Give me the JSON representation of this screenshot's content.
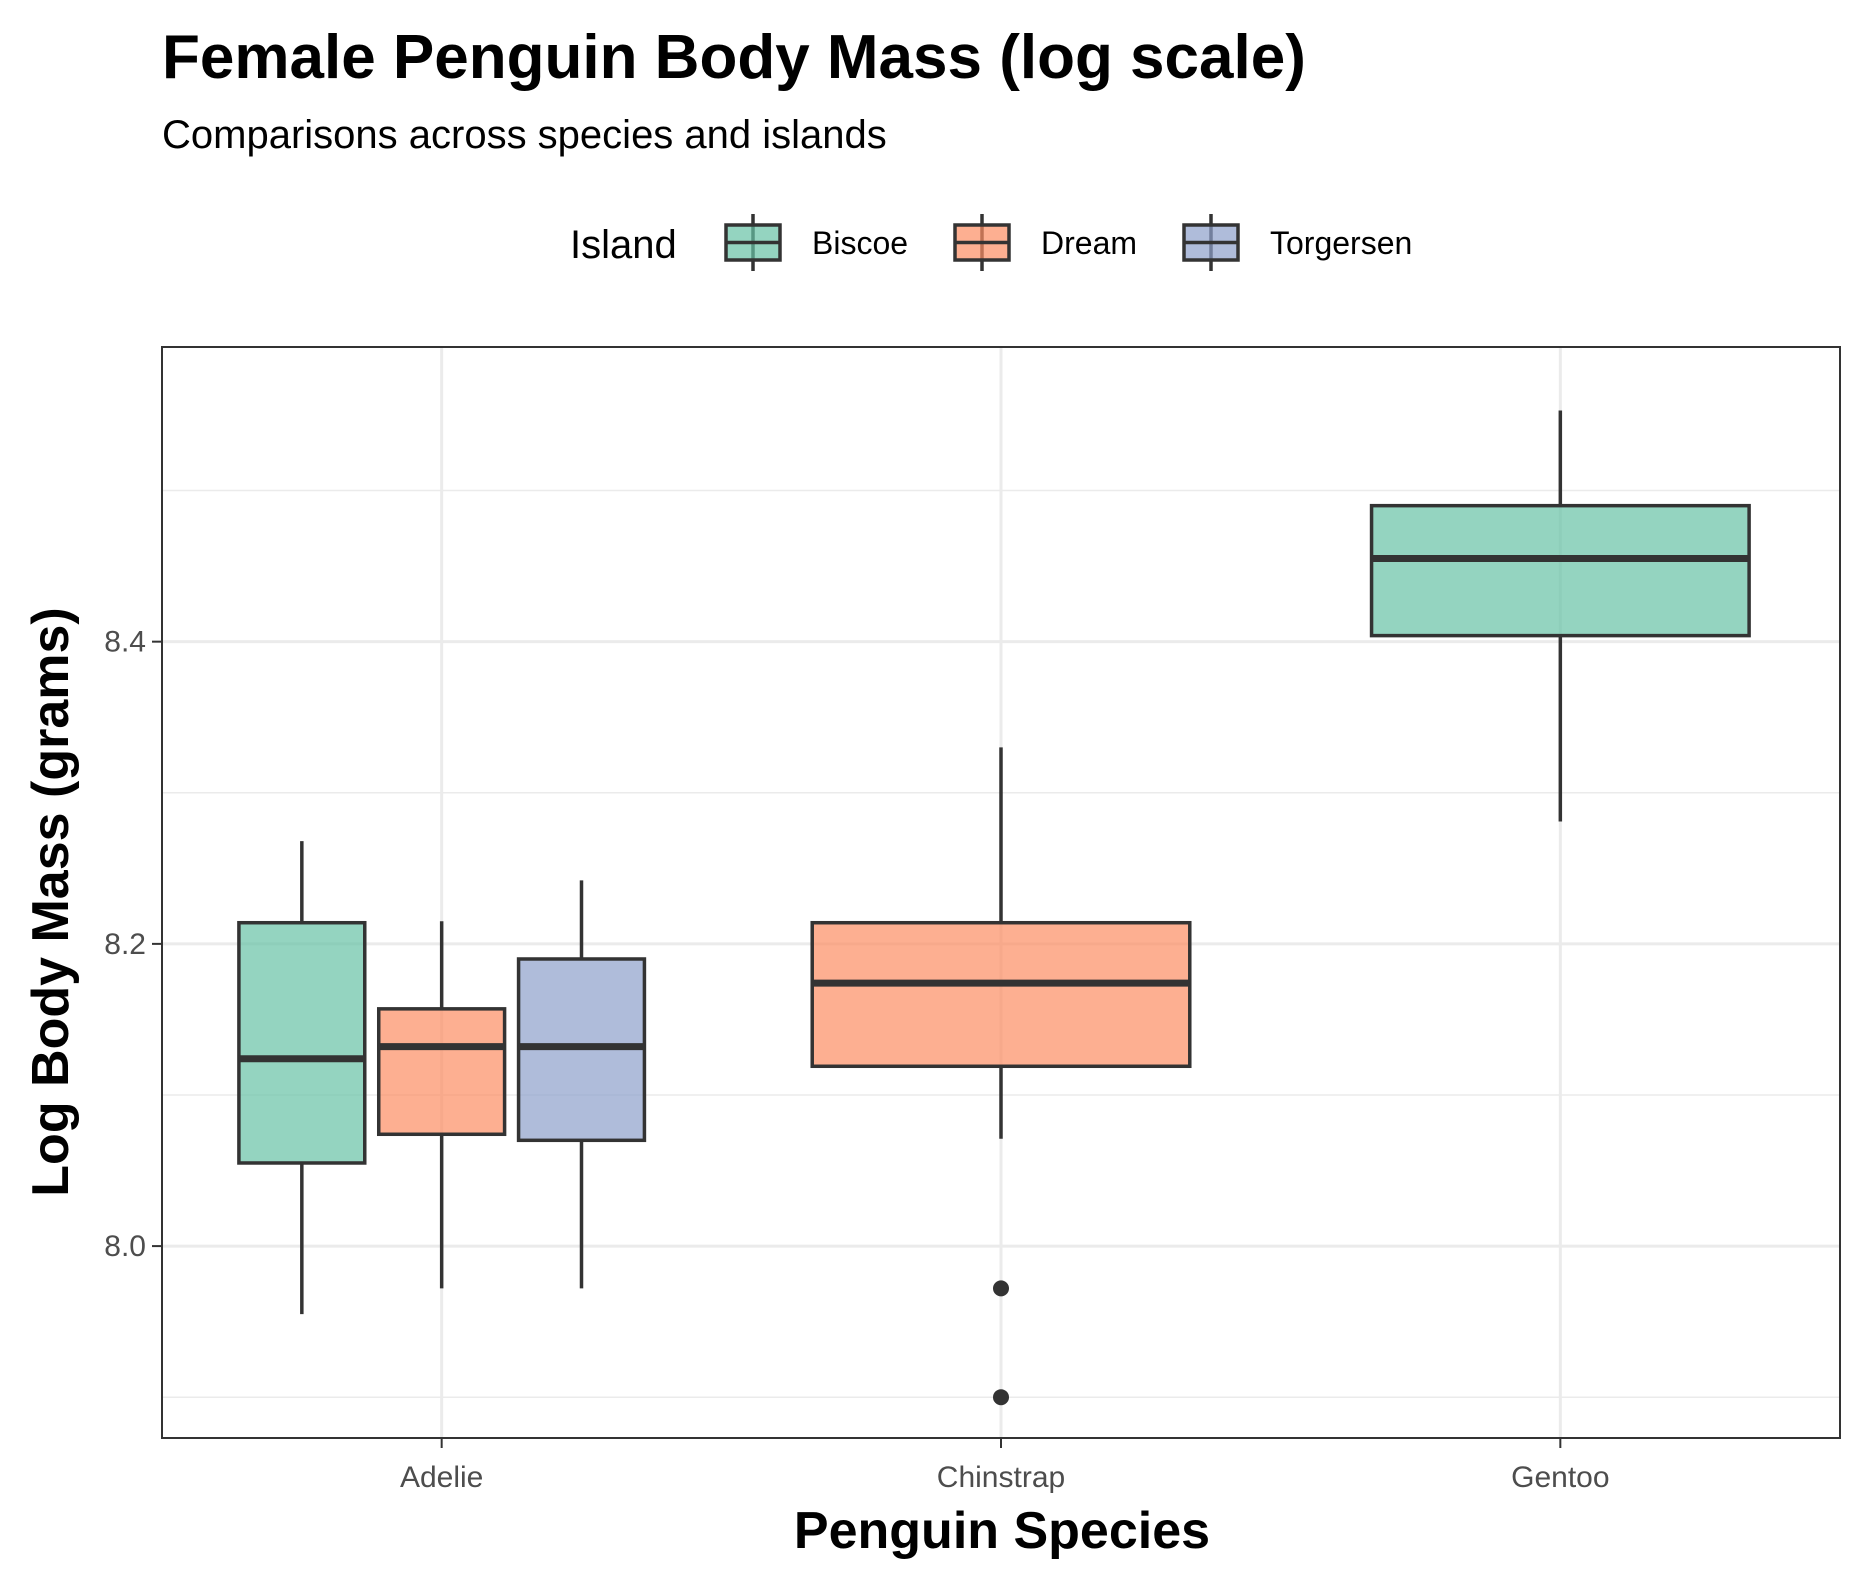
{
  "chart_data": {
    "type": "box",
    "title": "Female Penguin Body Mass (log scale)",
    "subtitle": "Comparisons across species and islands",
    "xlabel": "Penguin Species",
    "ylabel": "Log Body Mass (grams)",
    "categories": [
      "Adelie",
      "Chinstrap",
      "Gentoo"
    ],
    "ylim": [
      7.873,
      8.595
    ],
    "yticks": [
      8.0,
      8.2,
      8.4
    ],
    "ytick_labels": [
      "8.0",
      "8.2",
      "8.4"
    ],
    "grid": true,
    "legend": {
      "title": "Island",
      "position": "top",
      "entries": [
        "Biscoe",
        "Dream",
        "Torgersen"
      ]
    },
    "colors": {
      "Biscoe": "#66c2a5",
      "Dream": "#fc8d62",
      "Torgersen": "#8da0cb"
    },
    "series": [
      {
        "name": "Biscoe",
        "boxes": [
          {
            "category": "Adelie",
            "lower_whisker": 7.955,
            "q1": 8.055,
            "median": 8.124,
            "q3": 8.214,
            "upper_whisker": 8.268,
            "outliers": []
          },
          {
            "category": "Gentoo",
            "lower_whisker": 8.281,
            "q1": 8.404,
            "median": 8.455,
            "q3": 8.49,
            "upper_whisker": 8.553,
            "outliers": []
          }
        ]
      },
      {
        "name": "Dream",
        "boxes": [
          {
            "category": "Adelie",
            "lower_whisker": 7.972,
            "q1": 8.074,
            "median": 8.132,
            "q3": 8.157,
            "upper_whisker": 8.215,
            "outliers": []
          },
          {
            "category": "Chinstrap",
            "lower_whisker": 8.071,
            "q1": 8.119,
            "median": 8.174,
            "q3": 8.214,
            "upper_whisker": 8.33,
            "outliers": [
              7.972,
              7.9
            ]
          }
        ]
      },
      {
        "name": "Torgersen",
        "boxes": [
          {
            "category": "Adelie",
            "lower_whisker": 7.972,
            "q1": 8.07,
            "median": 8.132,
            "q3": 8.19,
            "upper_whisker": 8.242,
            "outliers": []
          }
        ]
      }
    ]
  }
}
